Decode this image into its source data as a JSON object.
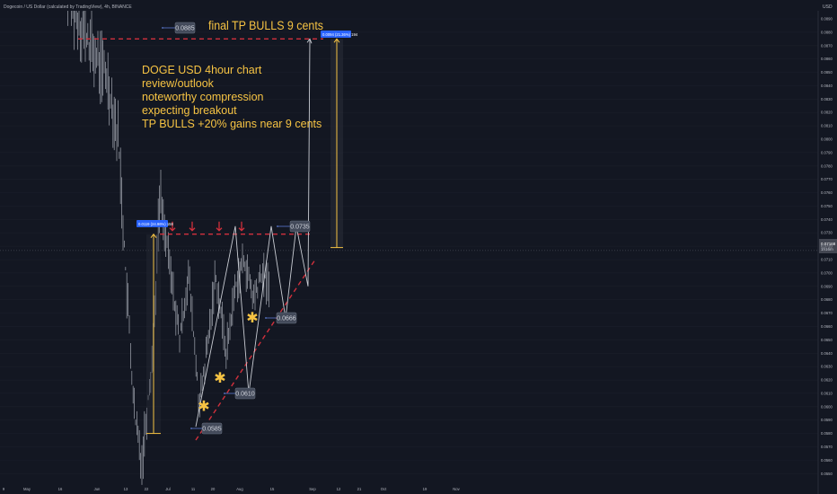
{
  "header": {
    "title": "Dogecoin / US Dollar (calculated by TradingView), 4h, BINANCE",
    "currency": "USD"
  },
  "annotations": {
    "final_tp": "final TP BULLS 9 cents",
    "notes": [
      "DOGE USD 4hour chart",
      "review/outlook",
      "noteworthy compression",
      "expecting breakout",
      "TP BULLS +20% gains near 9 cents"
    ],
    "measure_big": "0.0094 (21.36%) 194",
    "measure_small": "0.0119 (24.96%) 158",
    "current_price": "0.07168",
    "current_time": "1h16m"
  },
  "chart_data": {
    "type": "line",
    "y_axis_ticks": [
      "0.0890",
      "0.0880",
      "0.0870",
      "0.0860",
      "0.0850",
      "0.0840",
      "0.0830",
      "0.0820",
      "0.0810",
      "0.0800",
      "0.0790",
      "0.0780",
      "0.0770",
      "0.0760",
      "0.0750",
      "0.0740",
      "0.0730",
      "0.0720",
      "0.0710",
      "0.0700",
      "0.0690",
      "0.0680",
      "0.0670",
      "0.0660",
      "0.0650",
      "0.0640",
      "0.0630",
      "0.0620",
      "0.0610",
      "0.0600",
      "0.0590",
      "0.0580",
      "0.0570",
      "0.0560",
      "0.0550"
    ],
    "x_axis_ticks": [
      "9",
      "May",
      "16",
      "Jun",
      "13",
      "22",
      "Jul",
      "11",
      "20",
      "Aug",
      "15",
      "Sep",
      "12",
      "21",
      "Oct",
      "19",
      "Nov"
    ],
    "price_labels": [
      {
        "label": "0.0885",
        "price": 0.0885
      },
      {
        "label": "0.0735",
        "price": 0.0735
      },
      {
        "label": "0.0666",
        "price": 0.0666
      },
      {
        "label": "0.0610",
        "price": 0.061
      },
      {
        "label": "0.0585",
        "price": 0.0585
      }
    ],
    "levels": {
      "target": 0.0875,
      "resistance": 0.0729,
      "current": 0.07168
    },
    "projection": [
      {
        "price": 0.0585
      },
      {
        "price": 0.0735
      },
      {
        "price": 0.061
      },
      {
        "price": 0.0735
      },
      {
        "price": 0.0666
      },
      {
        "price": 0.0735
      },
      {
        "price": 0.069
      },
      {
        "price": 0.0875
      }
    ],
    "colors": {
      "background": "#131722",
      "candles": "#a9adb6",
      "resistance": "#d1303c",
      "annotation_text": "#f6c343",
      "label_blue": "#2962ff",
      "axis_text": "#b2b5be",
      "price_badge_bg": "#434651"
    }
  }
}
